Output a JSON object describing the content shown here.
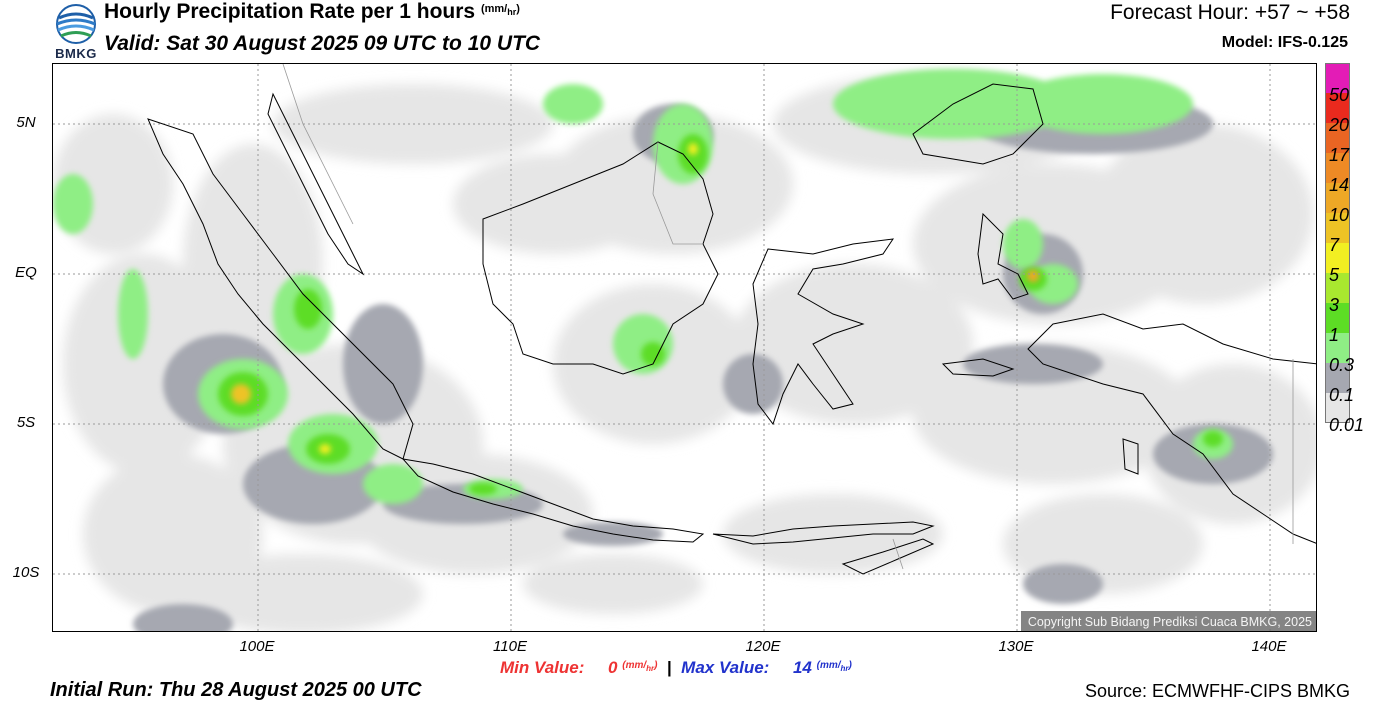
{
  "header": {
    "logo_text": "BMKG",
    "title": "Hourly Precipitation Rate per 1 hours",
    "title_unit_top": "mm",
    "title_unit_bottom": "hr",
    "valid": "Valid: Sat 30 August 2025 09 UTC to 10 UTC",
    "forecast_hour": "Forecast Hour: +57 ~ +58",
    "model": "Model: IFS-0.125"
  },
  "map": {
    "lat_labels": [
      "5N",
      "EQ",
      "5S",
      "10S"
    ],
    "lon_labels": [
      "100E",
      "110E",
      "120E",
      "130E",
      "140E"
    ],
    "copyright": "Copyright Sub Bidang Prediksi Cuaca BMKG, 2025"
  },
  "colorbar": {
    "labels": [
      "50",
      "20",
      "17",
      "14",
      "10",
      "7",
      "5",
      "3",
      "1",
      "0.3",
      "0.1",
      "0.01"
    ],
    "colors": [
      "#e31cb6",
      "#ea2a1e",
      "#ea6523",
      "#ee8a25",
      "#eea826",
      "#eec325",
      "#f2ef22",
      "#a9e82f",
      "#5ddd25",
      "#8fee85",
      "#a6a8b1",
      "#e6e6e6"
    ]
  },
  "footer": {
    "min_label": "Min Value:",
    "min_value": "0",
    "max_label": "Max Value:",
    "max_value": "14",
    "unit_top": "mm",
    "unit_bottom": "hr",
    "initial_run": "Initial Run: Thu 28 August 2025 00 UTC",
    "source": "Source: ECMWFHF-CIPS BMKG"
  }
}
